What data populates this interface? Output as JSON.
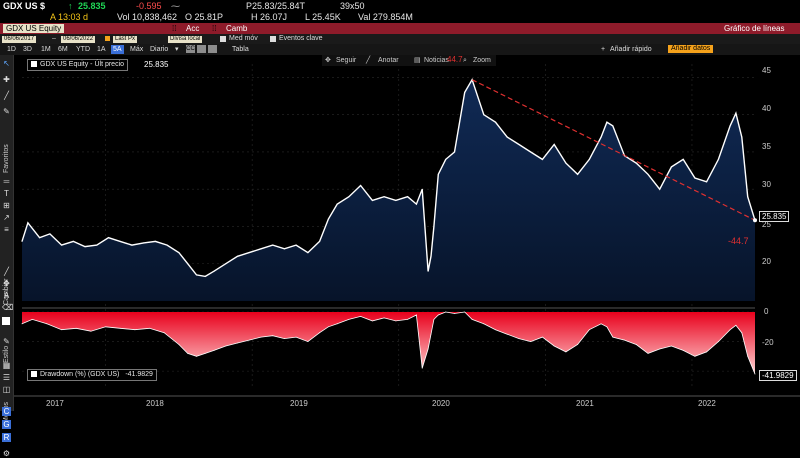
{
  "header": {
    "ticker": "GDX US $",
    "arrow": "↑",
    "price": "25.835",
    "change": "-0.595",
    "bid_ask": "P25.83/25.84T",
    "size": "39x50",
    "time_label": "A 13:03 d",
    "volume": "Vol 10,838,462",
    "open": "O 25.81P",
    "high": "H 26.07J",
    "low": "L 25.45K",
    "value": "Val 279.854M"
  },
  "security_bar": {
    "security": "GDX US Equity",
    "tab_acc": "Acc",
    "tab_camb": "Camb",
    "title": "Gráfico de líneas"
  },
  "controls": {
    "start_date": "06/06/2017",
    "end_date": "06/06/2022",
    "last_px": "Last Px",
    "currency": "Divisa local",
    "moving_avg": "Med móv",
    "key_events": "Eventos clave",
    "periods": [
      "1D",
      "3D",
      "1M",
      "6M",
      "YTD",
      "1A",
      "5A",
      "Máx"
    ],
    "active_period": "5A",
    "frequency": "Diario",
    "table": "Tabla",
    "quick_add": "Añadir rápido",
    "add_data": "Añadir datos"
  },
  "toolbar": {
    "follow": "Seguir",
    "annotate": "Anotar",
    "news": "Noticias",
    "zoom": "Zoom"
  },
  "sidebar": {
    "favorites": "Favoritos",
    "change": "Cambiar",
    "style": "Estilo",
    "modes": "Modos"
  },
  "upper_legend": {
    "label": "GDX US Equity - Últ precio",
    "value": "25.835"
  },
  "lower_legend": {
    "label": "Drawdown (%) (GDX US)",
    "value": "-41.9829"
  },
  "annotations": {
    "peak_label": "44.7",
    "trough_label": "-44.7",
    "last_price": "25.835",
    "last_drawdown": "-41.9829"
  },
  "colors": {
    "drawdown": "#e8001c",
    "price_area": "#0e2346",
    "trendline": "#e03030"
  },
  "chart_data": [
    {
      "type": "area",
      "ylim": [
        15,
        46
      ],
      "yticks": [
        "45",
        "40",
        "35",
        "30",
        "25",
        "20"
      ],
      "x_labels": [
        "2017",
        "2018",
        "2019",
        "2020",
        "2021",
        "2022"
      ],
      "series": [
        {
          "name": "GDX US Equity - Últ precio",
          "x": [
            2017.43,
            2017.47,
            2017.55,
            2017.62,
            2017.7,
            2017.78,
            2017.86,
            2017.94,
            2018.02,
            2018.1,
            2018.18,
            2018.26,
            2018.34,
            2018.42,
            2018.5,
            2018.56,
            2018.62,
            2018.68,
            2018.74,
            2018.82,
            2018.9,
            2018.98,
            2019.06,
            2019.14,
            2019.22,
            2019.3,
            2019.38,
            2019.46,
            2019.52,
            2019.58,
            2019.66,
            2019.74,
            2019.82,
            2019.9,
            2019.98,
            2020.06,
            2020.12,
            2020.16,
            2020.2,
            2020.22,
            2020.24,
            2020.27,
            2020.32,
            2020.38,
            2020.45,
            2020.5,
            2020.58,
            2020.66,
            2020.74,
            2020.82,
            2020.9,
            2020.98,
            2021.06,
            2021.14,
            2021.22,
            2021.3,
            2021.38,
            2021.42,
            2021.46,
            2021.54,
            2021.62,
            2021.7,
            2021.78,
            2021.86,
            2021.94,
            2022.02,
            2022.1,
            2022.18,
            2022.26,
            2022.3,
            2022.34,
            2022.38,
            2022.43
          ],
          "values": [
            23.0,
            25.5,
            23.5,
            24.0,
            22.5,
            23.0,
            22.3,
            22.5,
            23.5,
            23.0,
            22.5,
            22.8,
            23.0,
            22.5,
            21.5,
            20.0,
            18.5,
            18.3,
            19.0,
            20.0,
            21.0,
            21.5,
            22.0,
            22.5,
            22.0,
            22.5,
            21.5,
            23.0,
            26.0,
            28.0,
            29.0,
            30.5,
            28.5,
            29.0,
            28.5,
            29.0,
            28.0,
            30.0,
            19.0,
            21.0,
            25.0,
            32.0,
            34.0,
            35.0,
            43.0,
            44.7,
            40.0,
            39.0,
            37.0,
            36.0,
            35.0,
            34.0,
            36.0,
            33.5,
            32.0,
            34.0,
            37.0,
            39.0,
            38.5,
            34.5,
            33.5,
            32.0,
            30.0,
            33.0,
            34.0,
            31.5,
            31.0,
            34.0,
            38.5,
            40.2,
            37.0,
            29.0,
            25.835
          ]
        }
      ]
    },
    {
      "type": "area",
      "ylim": [
        -46,
        0
      ],
      "yticks": [
        "0",
        "-20",
        "-40"
      ],
      "x_labels": [
        "2017",
        "2018",
        "2019",
        "2020",
        "2021",
        "2022"
      ],
      "series": [
        {
          "name": "Drawdown (%) (GDX US)",
          "x": [
            2017.43,
            2017.5,
            2017.6,
            2017.7,
            2017.8,
            2017.9,
            2018.0,
            2018.1,
            2018.2,
            2018.3,
            2018.4,
            2018.5,
            2018.56,
            2018.62,
            2018.68,
            2018.74,
            2018.82,
            2018.9,
            2018.98,
            2019.06,
            2019.14,
            2019.22,
            2019.3,
            2019.38,
            2019.46,
            2019.52,
            2019.58,
            2019.66,
            2019.74,
            2019.82,
            2019.9,
            2019.98,
            2020.06,
            2020.12,
            2020.16,
            2020.2,
            2020.22,
            2020.24,
            2020.27,
            2020.32,
            2020.38,
            2020.45,
            2020.5,
            2020.58,
            2020.66,
            2020.74,
            2020.82,
            2020.9,
            2020.98,
            2021.06,
            2021.14,
            2021.22,
            2021.3,
            2021.38,
            2021.42,
            2021.46,
            2021.54,
            2021.62,
            2021.7,
            2021.78,
            2021.86,
            2021.94,
            2022.02,
            2022.1,
            2022.18,
            2022.26,
            2022.3,
            2022.34,
            2022.38,
            2022.43
          ],
          "values": [
            -8,
            -5,
            -8,
            -12,
            -11,
            -13,
            -10,
            -11,
            -12,
            -11,
            -14,
            -22,
            -28,
            -30,
            -28,
            -26,
            -23,
            -21,
            -19,
            -17,
            -16,
            -18,
            -17,
            -20,
            -14,
            -10,
            -8,
            -5,
            -3,
            -6,
            -4,
            -6,
            -5,
            -2,
            -38,
            -25,
            -15,
            -5,
            -2,
            0,
            -1,
            0,
            -5,
            -8,
            -12,
            -15,
            -18,
            -20,
            -17,
            -23,
            -27,
            -22,
            -12,
            -8,
            -10,
            -17,
            -19,
            -22,
            -28,
            -25,
            -23,
            -26,
            -30,
            -27,
            -20,
            -12,
            -9,
            -14,
            -30,
            -41.98
          ]
        }
      ]
    }
  ]
}
